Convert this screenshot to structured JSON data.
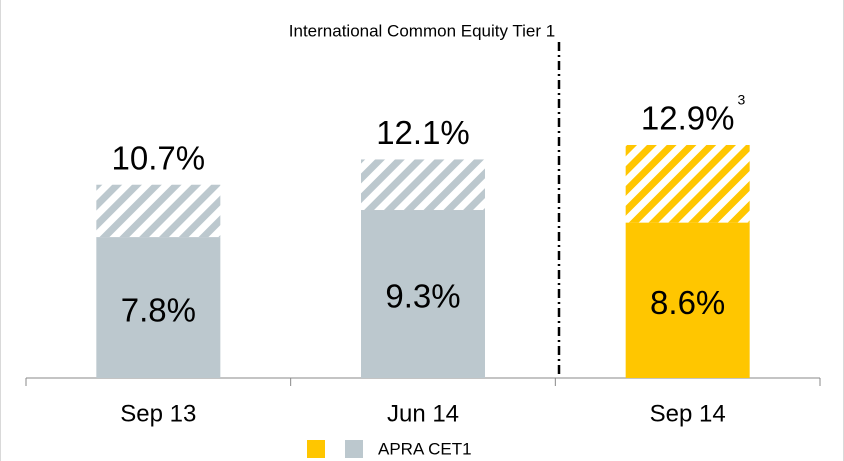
{
  "chart_data": {
    "type": "stacked-bar",
    "title": "International Common Equity Tier 1",
    "categories": [
      "Sep 13",
      "Jun 14",
      "Sep 14"
    ],
    "series": [
      {
        "name": "APRA CET1",
        "colors": [
          "#bcc8ce",
          "#bcc8ce",
          "#ffc600"
        ],
        "values": [
          7.8,
          9.3,
          8.6
        ],
        "value_labels": [
          "7.8%",
          "9.3%",
          "8.6%"
        ]
      },
      {
        "colors": [
          "#bcc8ce",
          "#bcc8ce",
          "#ffc600"
        ],
        "hatched": true,
        "values": [
          2.9,
          2.8,
          4.3
        ]
      }
    ],
    "totals": [
      10.7,
      12.1,
      12.9
    ],
    "total_labels": [
      "10.7%",
      "12.1%",
      "12.9%"
    ],
    "annotation": "3",
    "legend_colors": [
      "#ffc600",
      "#bcc8ce"
    ],
    "ylim": [
      0,
      16
    ]
  }
}
